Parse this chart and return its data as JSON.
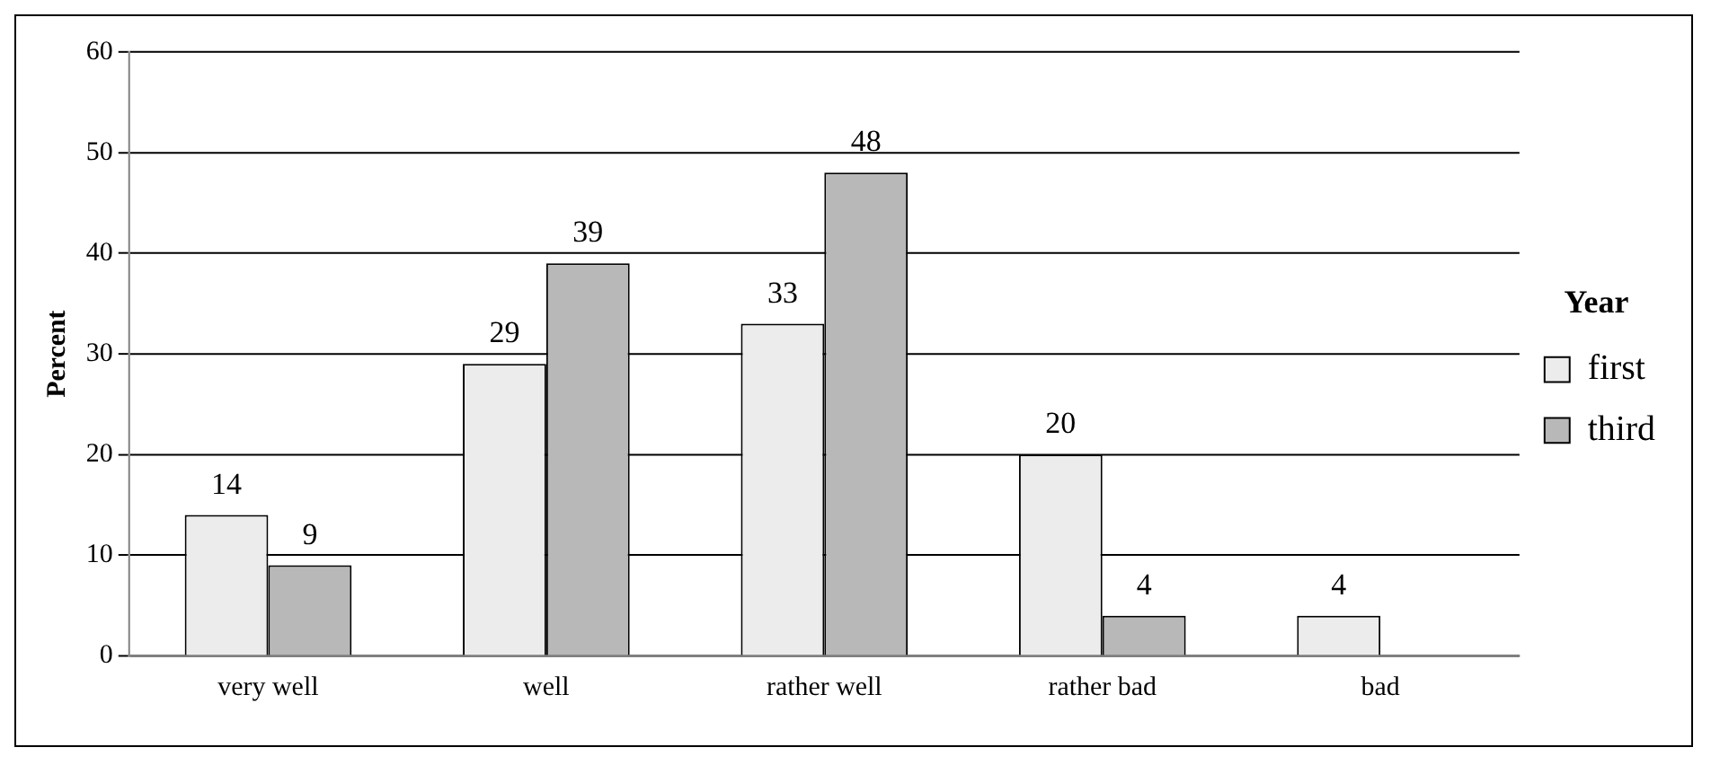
{
  "chart_data": {
    "type": "bar",
    "ylabel": "Percent",
    "legend_title": "Year",
    "categories": [
      "very well",
      "well",
      "rather well",
      "rather bad",
      "bad"
    ],
    "series": [
      {
        "name": "first",
        "color": "#ececec",
        "values": [
          14,
          29,
          33,
          20,
          4
        ]
      },
      {
        "name": "third",
        "color": "#b8b8b8",
        "values": [
          9,
          39,
          48,
          4,
          null
        ]
      }
    ],
    "ylim": [
      0,
      60
    ],
    "yticks": [
      0,
      10,
      20,
      30,
      40,
      50,
      60
    ],
    "grid": "y",
    "legend": "right",
    "data_labels": true
  }
}
